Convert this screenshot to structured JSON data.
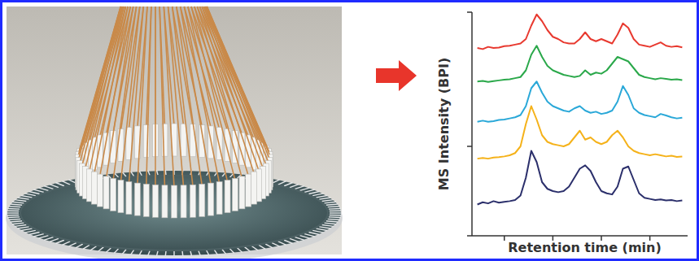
{
  "chart_data": {
    "type": "line",
    "x_label": "Retention time (min)",
    "y_label": "MS Intensity (BPI)",
    "xlim": [
      0,
      10
    ],
    "xticks": [
      1.5,
      3.75,
      6,
      8.25
    ],
    "ylim": [
      0,
      100
    ],
    "yticks": [
      0,
      40,
      100
    ],
    "tick_labels": false,
    "grid": false,
    "x": [
      0.25,
      0.5,
      0.75,
      1.0,
      1.25,
      1.5,
      1.75,
      2.0,
      2.25,
      2.5,
      2.75,
      3.0,
      3.25,
      3.5,
      3.75,
      4.0,
      4.25,
      4.5,
      4.75,
      5.0,
      5.25,
      5.5,
      5.75,
      6.0,
      6.25,
      6.5,
      6.75,
      7.0,
      7.25,
      7.5,
      7.75,
      8.0,
      8.25,
      8.5,
      8.75,
      9.0,
      9.25,
      9.5,
      9.75
    ],
    "series": [
      {
        "color": "#e8392f",
        "values": [
          84,
          83.5,
          84.5,
          84,
          84.2,
          84.8,
          85,
          85.5,
          86,
          88,
          94,
          99,
          96,
          92,
          89,
          88,
          86.5,
          86,
          86,
          88,
          91,
          88,
          87,
          88,
          87,
          86,
          90,
          95,
          93,
          88,
          85.5,
          85,
          84.5,
          85.5,
          86.5,
          85,
          84.5,
          84.8,
          84.3
        ]
      },
      {
        "color": "#2aa84a",
        "values": [
          69,
          69.3,
          68.8,
          69.2,
          69.5,
          69.8,
          70,
          70.5,
          71,
          74,
          81,
          85,
          80,
          76,
          74,
          73,
          72,
          71.5,
          71,
          71.5,
          74,
          72,
          73,
          72.5,
          74,
          77,
          80,
          79,
          78,
          75,
          72,
          71,
          70.5,
          70,
          70.5,
          70.2,
          69.8,
          70,
          69.6
        ]
      },
      {
        "color": "#2aa8d8",
        "values": [
          51,
          51.5,
          51,
          51.3,
          51.8,
          52,
          52.5,
          53,
          54,
          58,
          66,
          69,
          64,
          60,
          58,
          57,
          56,
          55.5,
          57,
          58,
          56,
          55,
          55.5,
          54.5,
          55,
          56,
          60,
          67,
          63,
          57,
          55,
          54,
          53.5,
          53,
          54.5,
          53.8,
          53,
          52.5,
          52.8
        ]
      },
      {
        "color": "#f5b21a",
        "values": [
          34.5,
          34.8,
          34.5,
          35,
          35.2,
          35.5,
          36,
          37,
          40,
          50,
          58,
          52,
          45,
          42,
          41,
          40.5,
          40,
          41,
          44,
          47,
          43,
          44,
          42,
          41,
          42,
          45,
          47,
          44,
          40,
          38,
          37,
          36.5,
          36,
          36.5,
          36,
          35.5,
          35.8,
          35.3,
          35.5
        ]
      },
      {
        "color": "#2b2f6b",
        "values": [
          14,
          15,
          14.5,
          15.5,
          14.8,
          15.2,
          15.5,
          16,
          18,
          26,
          38,
          33,
          24,
          21,
          20,
          19.5,
          20,
          22,
          26,
          30,
          31.5,
          29,
          24,
          20,
          19,
          18.5,
          22,
          30,
          31,
          25,
          19,
          17,
          16.5,
          16,
          16.3,
          15.8,
          16,
          15.5,
          15.8
        ]
      }
    ]
  }
}
